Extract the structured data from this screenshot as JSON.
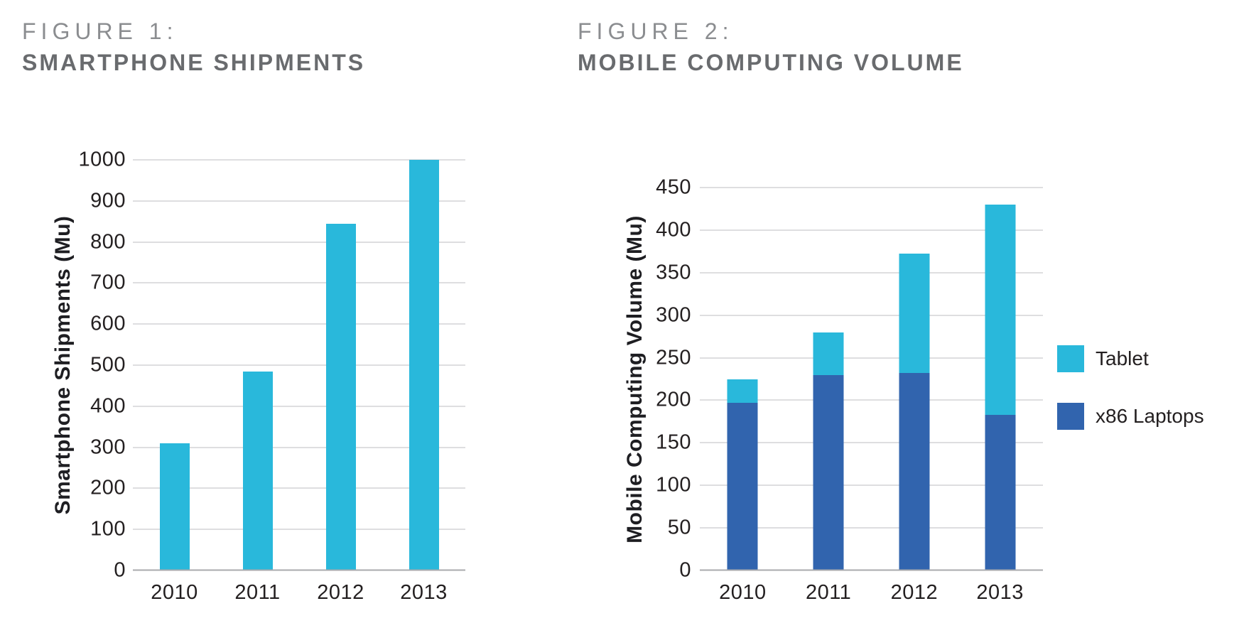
{
  "colors": {
    "tablet_cyan": "#29B8DB",
    "laptop_blue": "#3164AE",
    "gridline_gray": "#BDBEC0",
    "baseline_gray": "#A8AAAD",
    "axis_text": "#231F20",
    "figure_label_gray": "#8B8D90",
    "figure_title_gray": "#696B6E"
  },
  "chart_data": [
    {
      "type": "bar",
      "figure_label": "FIGURE 1:",
      "figure_title": "SMARTPHONE SHIPMENTS",
      "title": "FIGURE 1: SMARTPHONE SHIPMENTS",
      "categories": [
        "2010",
        "2011",
        "2012",
        "2013"
      ],
      "values": [
        310,
        485,
        845,
        1000
      ],
      "color": "#29B8DB",
      "xlabel": "",
      "ylabel": "Smartphone Shipments (Mu)",
      "ylim": [
        0,
        1000
      ],
      "ytick_step": 100,
      "grid": true,
      "legend_position": "none"
    },
    {
      "type": "bar",
      "stacked": true,
      "figure_label": "FIGURE 2:",
      "figure_title": "MOBILE COMPUTING VOLUME",
      "title": "FIGURE 2: MOBILE COMPUTING VOLUME",
      "categories": [
        "2010",
        "2011",
        "2012",
        "2013"
      ],
      "series": [
        {
          "name": "x86 Laptops",
          "color": "#3164AE",
          "values": [
            197,
            230,
            232,
            183
          ]
        },
        {
          "name": "Tablet",
          "color": "#29B8DB",
          "values": [
            28,
            50,
            140,
            247
          ]
        }
      ],
      "totals": [
        225,
        280,
        372,
        430
      ],
      "xlabel": "",
      "ylabel": "Mobile Computing Volume (Mu)",
      "ylim": [
        0,
        450
      ],
      "ytick_step": 50,
      "grid": true,
      "legend_position": "right",
      "legend": [
        {
          "label": "Tablet",
          "color": "#29B8DB"
        },
        {
          "label": "x86 Laptops",
          "color": "#3164AE"
        }
      ]
    }
  ]
}
